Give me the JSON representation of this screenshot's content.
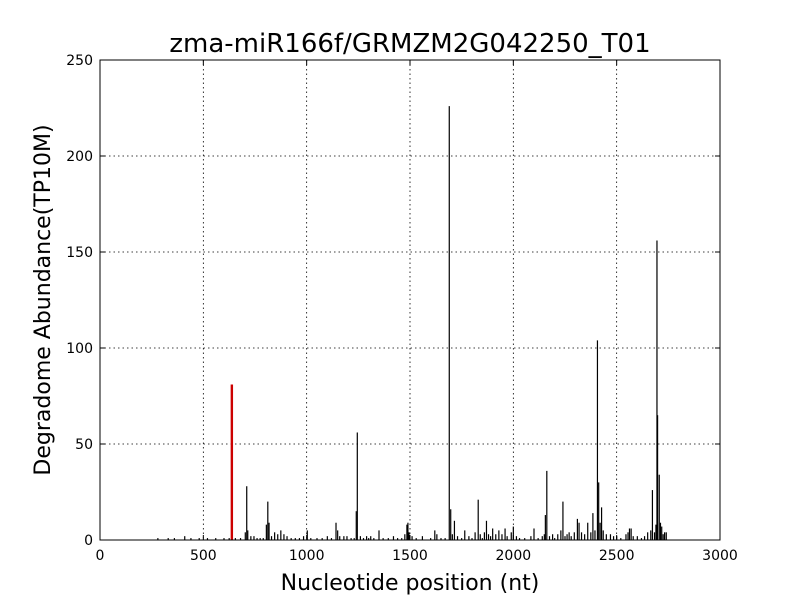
{
  "chart_data": {
    "type": "bar",
    "title": "zma-miR166f/GRMZM2G042250_T01",
    "xlabel": "Nucleotide position (nt)",
    "ylabel": "Degradome Abundance(TP10M)",
    "xlim": [
      0,
      3000
    ],
    "ylim": [
      0,
      250
    ],
    "xticks": [
      0,
      500,
      1000,
      1500,
      2000,
      2500,
      3000
    ],
    "yticks": [
      0,
      50,
      100,
      150,
      200,
      250
    ],
    "grid": true,
    "legend": "none",
    "colors": {
      "normal": "#000000",
      "highlight": "#cc0000"
    },
    "highlight": {
      "x": 638,
      "y": 81
    },
    "points": [
      [
        280,
        1
      ],
      [
        330,
        1
      ],
      [
        360,
        1
      ],
      [
        410,
        2
      ],
      [
        440,
        1
      ],
      [
        480,
        1
      ],
      [
        520,
        1
      ],
      [
        560,
        1
      ],
      [
        600,
        1
      ],
      [
        625,
        1
      ],
      [
        655,
        1
      ],
      [
        680,
        1
      ],
      [
        703,
        4
      ],
      [
        710,
        28
      ],
      [
        715,
        5
      ],
      [
        730,
        2
      ],
      [
        745,
        2
      ],
      [
        760,
        1
      ],
      [
        775,
        1
      ],
      [
        790,
        1
      ],
      [
        805,
        8
      ],
      [
        812,
        20
      ],
      [
        818,
        9
      ],
      [
        830,
        2
      ],
      [
        845,
        4
      ],
      [
        860,
        3
      ],
      [
        875,
        5
      ],
      [
        890,
        3
      ],
      [
        905,
        2
      ],
      [
        925,
        1
      ],
      [
        945,
        1
      ],
      [
        965,
        1
      ],
      [
        985,
        2
      ],
      [
        1003,
        5
      ],
      [
        1020,
        1
      ],
      [
        1050,
        1
      ],
      [
        1075,
        1
      ],
      [
        1100,
        2
      ],
      [
        1120,
        1
      ],
      [
        1142,
        9
      ],
      [
        1150,
        5
      ],
      [
        1160,
        2
      ],
      [
        1180,
        2
      ],
      [
        1195,
        2
      ],
      [
        1215,
        1
      ],
      [
        1230,
        1
      ],
      [
        1240,
        15
      ],
      [
        1245,
        56
      ],
      [
        1260,
        2
      ],
      [
        1275,
        1
      ],
      [
        1290,
        2
      ],
      [
        1300,
        1
      ],
      [
        1310,
        2
      ],
      [
        1325,
        1
      ],
      [
        1350,
        5
      ],
      [
        1370,
        1
      ],
      [
        1395,
        1
      ],
      [
        1420,
        2
      ],
      [
        1440,
        1
      ],
      [
        1460,
        1
      ],
      [
        1475,
        3
      ],
      [
        1485,
        8
      ],
      [
        1490,
        9
      ],
      [
        1495,
        4
      ],
      [
        1510,
        2
      ],
      [
        1530,
        1
      ],
      [
        1560,
        2
      ],
      [
        1600,
        1
      ],
      [
        1620,
        5
      ],
      [
        1630,
        3
      ],
      [
        1650,
        1
      ],
      [
        1670,
        1
      ],
      [
        1690,
        226
      ],
      [
        1697,
        16
      ],
      [
        1705,
        3
      ],
      [
        1715,
        10
      ],
      [
        1730,
        2
      ],
      [
        1750,
        1
      ],
      [
        1765,
        5
      ],
      [
        1785,
        2
      ],
      [
        1800,
        1
      ],
      [
        1815,
        4
      ],
      [
        1830,
        21
      ],
      [
        1840,
        3
      ],
      [
        1850,
        1
      ],
      [
        1860,
        4
      ],
      [
        1870,
        10
      ],
      [
        1880,
        3
      ],
      [
        1890,
        2
      ],
      [
        1900,
        6
      ],
      [
        1915,
        3
      ],
      [
        1930,
        5
      ],
      [
        1945,
        3
      ],
      [
        1960,
        6
      ],
      [
        1970,
        2
      ],
      [
        1990,
        4
      ],
      [
        2000,
        7
      ],
      [
        2015,
        2
      ],
      [
        2030,
        1
      ],
      [
        2055,
        1
      ],
      [
        2085,
        2
      ],
      [
        2100,
        6
      ],
      [
        2120,
        1
      ],
      [
        2140,
        2
      ],
      [
        2150,
        3
      ],
      [
        2155,
        13
      ],
      [
        2162,
        36
      ],
      [
        2175,
        2
      ],
      [
        2190,
        3
      ],
      [
        2200,
        1
      ],
      [
        2215,
        3
      ],
      [
        2230,
        5
      ],
      [
        2240,
        20
      ],
      [
        2250,
        2
      ],
      [
        2260,
        3
      ],
      [
        2270,
        4
      ],
      [
        2280,
        2
      ],
      [
        2295,
        4
      ],
      [
        2310,
        11
      ],
      [
        2318,
        9
      ],
      [
        2330,
        4
      ],
      [
        2345,
        3
      ],
      [
        2360,
        9
      ],
      [
        2375,
        4
      ],
      [
        2385,
        14
      ],
      [
        2395,
        5
      ],
      [
        2407,
        104
      ],
      [
        2413,
        30
      ],
      [
        2420,
        9
      ],
      [
        2427,
        17
      ],
      [
        2435,
        5
      ],
      [
        2450,
        3
      ],
      [
        2470,
        3
      ],
      [
        2485,
        2
      ],
      [
        2500,
        2
      ],
      [
        2520,
        1
      ],
      [
        2545,
        3
      ],
      [
        2555,
        4
      ],
      [
        2562,
        6
      ],
      [
        2570,
        6
      ],
      [
        2580,
        2
      ],
      [
        2600,
        2
      ],
      [
        2620,
        1
      ],
      [
        2635,
        2
      ],
      [
        2650,
        4
      ],
      [
        2665,
        5
      ],
      [
        2673,
        26
      ],
      [
        2683,
        4
      ],
      [
        2690,
        8
      ],
      [
        2695,
        156
      ],
      [
        2698,
        65
      ],
      [
        2706,
        34
      ],
      [
        2712,
        9
      ],
      [
        2718,
        7
      ],
      [
        2725,
        3
      ],
      [
        2732,
        4
      ],
      [
        2740,
        4
      ]
    ]
  }
}
